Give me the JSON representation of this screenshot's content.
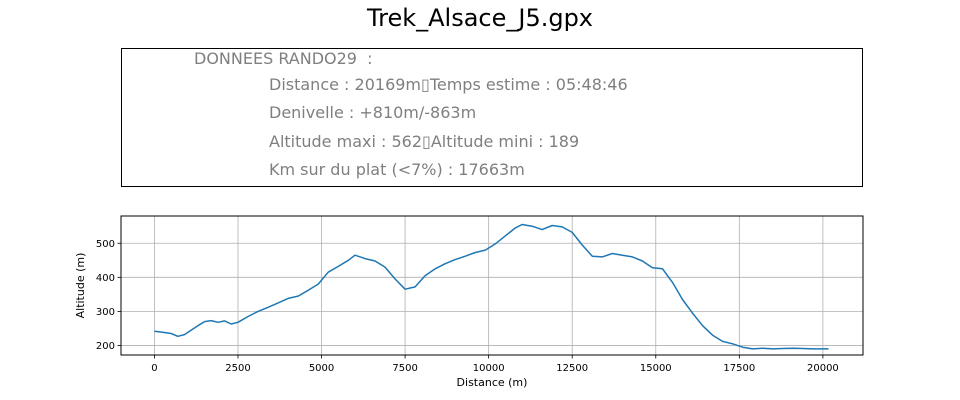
{
  "figure": {
    "title": "Trek_Alsace_J5.gpx"
  },
  "info": {
    "heading": "DONNEES RANDO29  :",
    "lines": [
      "Distance : 20169m▯Temps estime : 05:48:46",
      "Denivelle : +810m/-863m",
      "Altitude maxi : 562▯Altitude mini : 189",
      "Km sur du plat (<7%) : 17663m"
    ]
  },
  "colors": {
    "line": "#1f77b4",
    "grid": "#b0b0b0",
    "info_text": "#7f7f7f"
  },
  "chart_data": {
    "type": "line",
    "title": "",
    "xlabel": "Distance (m)",
    "ylabel": "Altitude (m)",
    "xlim": [
      -1000,
      21200
    ],
    "ylim": [
      172,
      580
    ],
    "xticks": [
      0,
      2500,
      5000,
      7500,
      10000,
      12500,
      15000,
      17500,
      20000
    ],
    "yticks": [
      200,
      300,
      400,
      500
    ],
    "grid": true,
    "series": [
      {
        "x": [
          0,
          300,
          500,
          700,
          900,
          1100,
          1300,
          1500,
          1700,
          1900,
          2100,
          2300,
          2500,
          2800,
          3100,
          3400,
          3700,
          4000,
          4300,
          4600,
          4900,
          5200,
          5500,
          5800,
          6000,
          6300,
          6600,
          6900,
          7200,
          7500,
          7800,
          8100,
          8400,
          8700,
          9000,
          9300,
          9600,
          9900,
          10200,
          10500,
          10800,
          11000,
          11300,
          11600,
          11900,
          12200,
          12500,
          12800,
          13100,
          13400,
          13700,
          14000,
          14300,
          14600,
          14900,
          15200,
          15500,
          15800,
          16100,
          16400,
          16700,
          17000,
          17300,
          17600,
          17900,
          18200,
          18500,
          18800,
          19100,
          19400,
          19700,
          20000,
          20169
        ],
        "values": [
          242,
          238,
          235,
          227,
          232,
          245,
          258,
          270,
          273,
          268,
          272,
          263,
          268,
          285,
          300,
          312,
          325,
          338,
          345,
          362,
          380,
          415,
          432,
          450,
          465,
          455,
          448,
          430,
          395,
          365,
          372,
          405,
          425,
          440,
          452,
          462,
          473,
          480,
          498,
          522,
          545,
          555,
          550,
          540,
          552,
          548,
          532,
          495,
          462,
          460,
          470,
          465,
          460,
          448,
          428,
          425,
          385,
          335,
          295,
          258,
          230,
          212,
          205,
          195,
          190,
          192,
          190,
          191,
          192,
          191,
          190,
          190,
          190
        ]
      }
    ]
  }
}
